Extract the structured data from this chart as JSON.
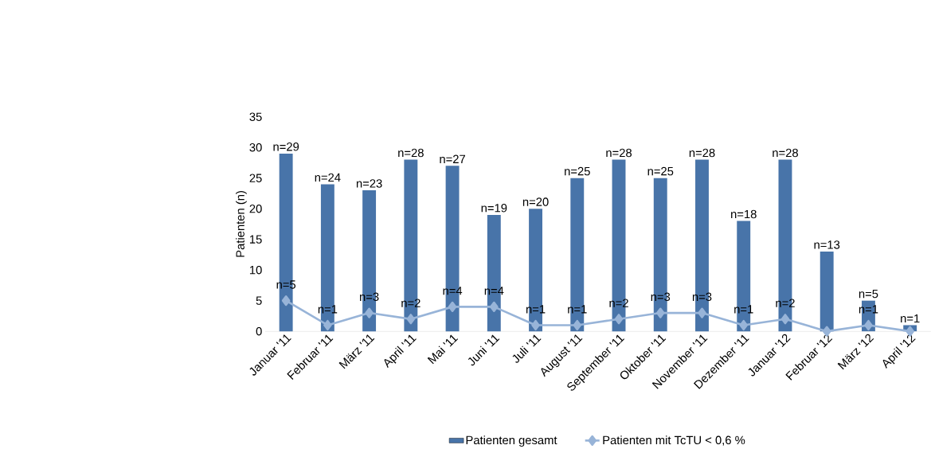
{
  "chart_data": {
    "type": "bar",
    "ylabel": "Patienten (n)",
    "categories": [
      "Januar '11",
      "Februar '11",
      "März '11",
      "April '11",
      "Mai '11",
      "Juni '11",
      "Juli '11",
      "August '11",
      "September '11",
      "Oktober '11",
      "November '11",
      "Dezember '11",
      "Januar '12",
      "Februar '12",
      "März '12",
      "April '12"
    ],
    "series": [
      {
        "name": "Patienten gesamt",
        "color": "#4874a9",
        "values": [
          29,
          24,
          23,
          28,
          27,
          19,
          20,
          25,
          28,
          25,
          28,
          18,
          28,
          13,
          5,
          1
        ],
        "value_labels": [
          "n=29",
          "n=24",
          "n=23",
          "n=28",
          "n=27",
          "n=19",
          "n=20",
          "n=25",
          "n=28",
          "n=25",
          "n=28",
          "n=18",
          "n=28",
          "n=13",
          "n=5",
          "n=1"
        ]
      },
      {
        "name": "Patienten mit TcTU < 0,6 %",
        "type": "line",
        "color": "#98b4d8",
        "marker": "diamond",
        "values": [
          5,
          1,
          3,
          2,
          4,
          4,
          1,
          1,
          2,
          3,
          3,
          1,
          2,
          0,
          1,
          0
        ],
        "value_labels": [
          "n=5",
          "n=1",
          "n=3",
          "n=2",
          "n=4",
          "n=4",
          "n=1",
          "n=1",
          "n=2",
          "n=3",
          "n=3",
          "n=1",
          "n=2",
          null,
          "n=1",
          null
        ]
      }
    ],
    "ylim": [
      0,
      35
    ],
    "yticks": [
      0,
      5,
      10,
      15,
      20,
      25,
      30,
      35
    ],
    "grid": false,
    "legend": "bottom"
  }
}
